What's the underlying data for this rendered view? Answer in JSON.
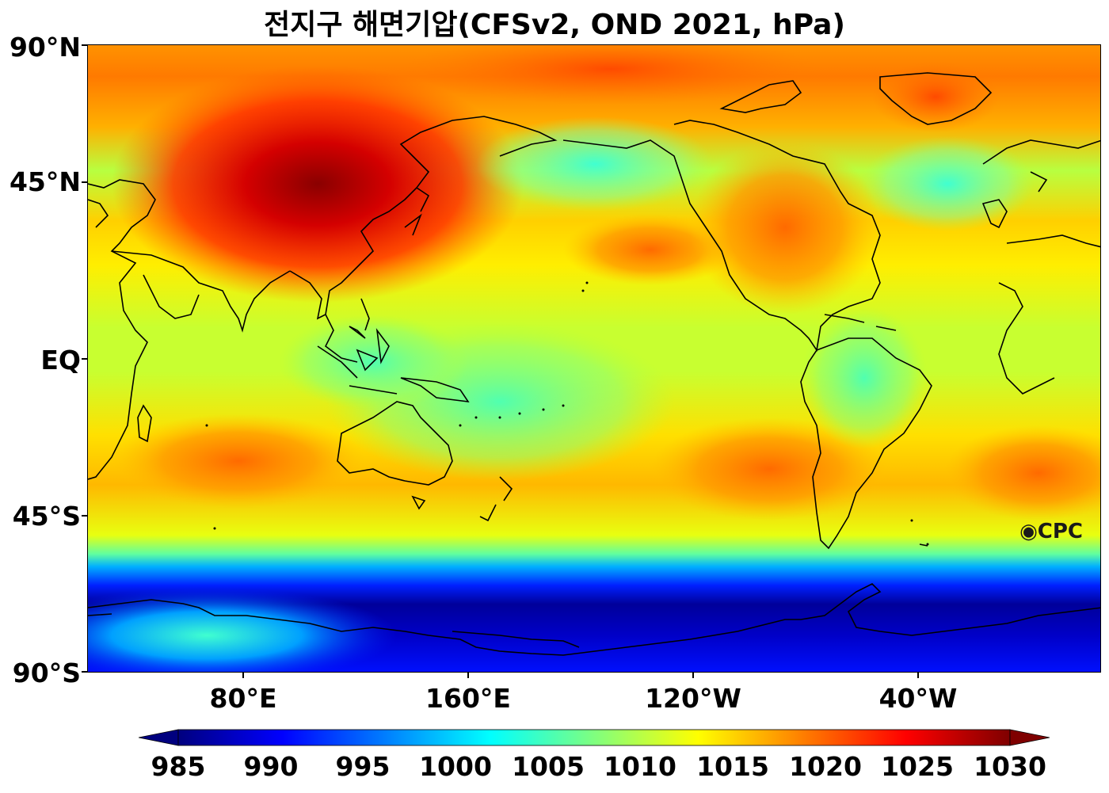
{
  "title": "전지구 해면기압(CFSv2, OND 2021, hPa)",
  "map": {
    "type": "map",
    "projection": "equirectangular",
    "center_longitude": "180°",
    "field": "mean sea level pressure",
    "colormap": "jet",
    "y_ticks": [
      "90°N",
      "45°N",
      "EQ",
      "45°S",
      "90°S"
    ],
    "x_ticks": [
      "80°E",
      "160°E",
      "120°W",
      "40°W"
    ],
    "logo": "CPC"
  },
  "colorbar": {
    "min": 985,
    "max": 1030,
    "extend": "both",
    "ticks": [
      "985",
      "990",
      "995",
      "1000",
      "1005",
      "1010",
      "1015",
      "1020",
      "1025",
      "1030"
    ],
    "colors": [
      "#00007f",
      "#0000ff",
      "#007fff",
      "#00ffff",
      "#7fff7f",
      "#ffff00",
      "#ff7f00",
      "#ff0000",
      "#7f0000"
    ]
  }
}
